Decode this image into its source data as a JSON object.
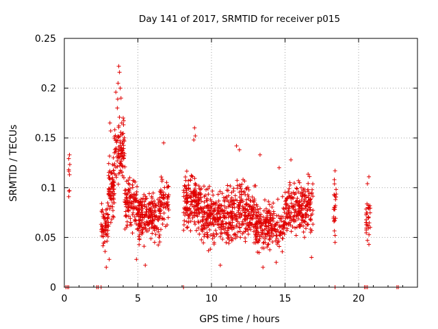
{
  "chart_data": {
    "type": "scatter",
    "title": "Day 141 of 2017, SRMTID for receiver p015",
    "xlabel": "GPS time / hours",
    "ylabel": "SRMTID / TECUs",
    "xlim": [
      0,
      24
    ],
    "ylim": [
      0,
      0.25
    ],
    "x_ticks": [
      0,
      5,
      10,
      15,
      20
    ],
    "x_tick_labels": [
      "0",
      "5",
      "10",
      "15",
      "20"
    ],
    "y_ticks": [
      0,
      0.05,
      0.1,
      0.15,
      0.2,
      0.25
    ],
    "y_tick_labels": [
      "0",
      "0.05",
      "0.1",
      "0.15",
      "0.2",
      "0.25"
    ],
    "grid": true,
    "marker": "+",
    "color": "#e00000",
    "series": [
      {
        "name": "SRMTID",
        "clusters": [
          {
            "x_range": [
              0.3,
              0.4
            ],
            "y_mean": 0.11,
            "y_spread": 0.012,
            "count": 5,
            "seed": 11
          },
          {
            "x_range": [
              2.5,
              3.0
            ],
            "y_mean": 0.062,
            "y_spread": 0.015,
            "count": 60,
            "seed": 21
          },
          {
            "x_range": [
              3.0,
              3.4
            ],
            "y_mean": 0.1,
            "y_spread": 0.02,
            "count": 70,
            "seed": 22
          },
          {
            "x_range": [
              3.4,
              4.1
            ],
            "y_mean": 0.14,
            "y_spread": 0.025,
            "count": 90,
            "seed": 23
          },
          {
            "x_range": [
              4.1,
              5.0
            ],
            "y_mean": 0.085,
            "y_spread": 0.02,
            "count": 110,
            "seed": 24
          },
          {
            "x_range": [
              5.0,
              6.5
            ],
            "y_mean": 0.07,
            "y_spread": 0.016,
            "count": 200,
            "seed": 25
          },
          {
            "x_range": [
              6.5,
              7.1
            ],
            "y_mean": 0.085,
            "y_spread": 0.02,
            "count": 60,
            "seed": 26
          },
          {
            "x_range": [
              8.1,
              9.3
            ],
            "y_mean": 0.085,
            "y_spread": 0.018,
            "count": 160,
            "seed": 27
          },
          {
            "x_range": [
              9.3,
              11.2
            ],
            "y_mean": 0.07,
            "y_spread": 0.02,
            "count": 240,
            "seed": 28
          },
          {
            "x_range": [
              11.2,
              13.0
            ],
            "y_mean": 0.075,
            "y_spread": 0.02,
            "count": 220,
            "seed": 29
          },
          {
            "x_range": [
              13.0,
              15.0
            ],
            "y_mean": 0.062,
            "y_spread": 0.016,
            "count": 220,
            "seed": 30
          },
          {
            "x_range": [
              15.0,
              16.9
            ],
            "y_mean": 0.08,
            "y_spread": 0.018,
            "count": 220,
            "seed": 31
          },
          {
            "x_range": [
              18.3,
              18.5
            ],
            "y_mean": 0.08,
            "y_spread": 0.015,
            "count": 22,
            "seed": 32
          },
          {
            "x_range": [
              20.5,
              20.8
            ],
            "y_mean": 0.07,
            "y_spread": 0.015,
            "count": 28,
            "seed": 33
          }
        ],
        "extra_points": [
          [
            0.35,
            0.133
          ],
          [
            0.3,
            0.118
          ],
          [
            0.35,
            0.097
          ],
          [
            0.3,
            0.091
          ],
          [
            3.7,
            0.222
          ],
          [
            3.75,
            0.216
          ],
          [
            3.65,
            0.205
          ],
          [
            3.8,
            0.2
          ],
          [
            3.5,
            0.196
          ],
          [
            3.85,
            0.19
          ],
          [
            3.6,
            0.18
          ],
          [
            3.1,
            0.165
          ],
          [
            3.15,
            0.157
          ],
          [
            4.0,
            0.17
          ],
          [
            3.9,
            0.165
          ],
          [
            8.85,
            0.16
          ],
          [
            8.9,
            0.152
          ],
          [
            8.8,
            0.148
          ],
          [
            6.75,
            0.145
          ],
          [
            11.7,
            0.142
          ],
          [
            11.9,
            0.138
          ],
          [
            13.3,
            0.133
          ],
          [
            15.4,
            0.128
          ],
          [
            14.6,
            0.12
          ],
          [
            18.4,
            0.117
          ],
          [
            18.35,
            0.108
          ],
          [
            20.7,
            0.111
          ],
          [
            20.6,
            0.104
          ],
          [
            20.7,
            0.043
          ],
          [
            20.6,
            0.047
          ],
          [
            18.4,
            0.052
          ],
          [
            18.4,
            0.045
          ],
          [
            3.05,
            0.028
          ],
          [
            2.85,
            0.02
          ],
          [
            4.9,
            0.028
          ],
          [
            5.5,
            0.022
          ],
          [
            10.6,
            0.022
          ],
          [
            13.5,
            0.02
          ],
          [
            14.4,
            0.025
          ],
          [
            16.8,
            0.03
          ]
        ],
        "zero_points_x": [
          0.1,
          0.2,
          0.3,
          2.2,
          2.3,
          2.5,
          8.1,
          18.4,
          20.4,
          20.5,
          20.6,
          22.6,
          22.7
        ]
      }
    ]
  }
}
